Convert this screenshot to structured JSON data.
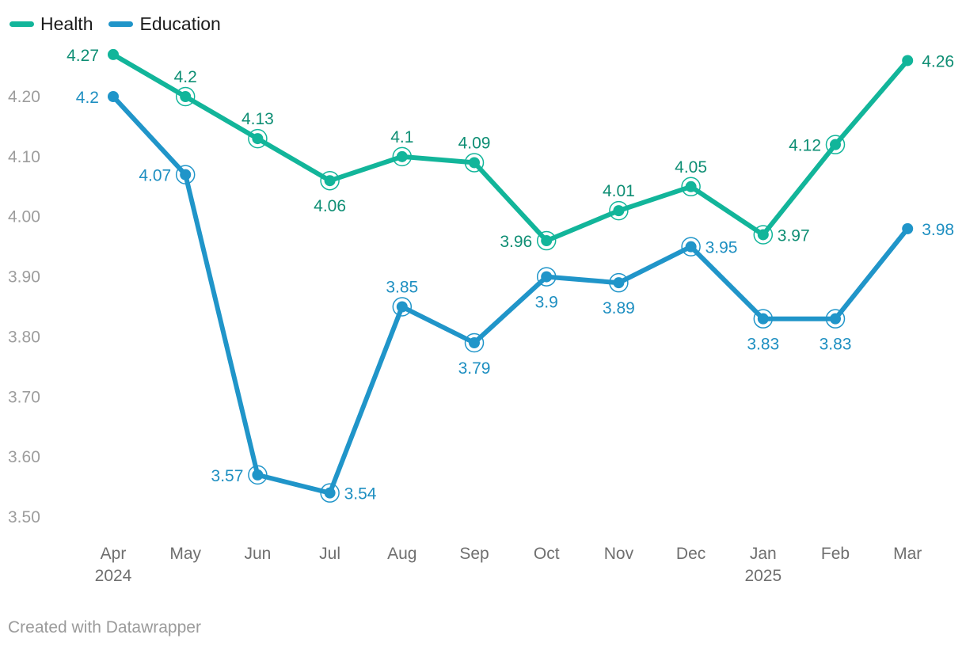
{
  "legend": [
    {
      "name": "Health",
      "color": "#12b59a"
    },
    {
      "name": "Education",
      "color": "#2095c9"
    }
  ],
  "footer": {
    "text": "Created with Datawrapper"
  },
  "chart_data": {
    "type": "line",
    "title": "",
    "xlabel": "",
    "ylabel": "",
    "x": [
      "Apr",
      "May",
      "Jun",
      "Jul",
      "Aug",
      "Sep",
      "Oct",
      "Nov",
      "Dec",
      "Jan",
      "Feb",
      "Mar"
    ],
    "x_year_labels": [
      {
        "index": 0,
        "text": "2024"
      },
      {
        "index": 9,
        "text": "2025"
      }
    ],
    "y_ticks": [
      "4.20",
      "4.10",
      "4.00",
      "3.90",
      "3.80",
      "3.70",
      "3.60",
      "3.50"
    ],
    "ylim": [
      3.5,
      4.3
    ],
    "grid": "none",
    "legend_position": "top-left",
    "series": [
      {
        "name": "Health",
        "color": "#12b59a",
        "label_color": "#0e8e74",
        "values": [
          4.27,
          4.2,
          4.13,
          4.06,
          4.1,
          4.09,
          3.96,
          4.01,
          4.05,
          3.97,
          4.12,
          4.26
        ],
        "labels": [
          "4.27",
          "4.2",
          "4.13",
          "4.06",
          "4.1",
          "4.09",
          "3.96",
          "4.01",
          "4.05",
          "3.97",
          "4.12",
          "4.26"
        ],
        "label_placement": [
          "left",
          "above",
          "above",
          "below",
          "above",
          "above",
          "left",
          "above",
          "above",
          "right",
          "left",
          "right"
        ]
      },
      {
        "name": "Education",
        "color": "#2095c9",
        "label_color": "#1e8fc1",
        "values": [
          4.2,
          4.07,
          3.57,
          3.54,
          3.85,
          3.79,
          3.9,
          3.89,
          3.95,
          3.83,
          3.83,
          3.98
        ],
        "labels": [
          "4.2",
          "4.07",
          "3.57",
          "3.54",
          "3.85",
          "3.79",
          "3.9",
          "3.89",
          "3.95",
          "3.83",
          "3.83",
          "3.98"
        ],
        "label_placement": [
          "left",
          "left",
          "left",
          "right",
          "above",
          "below",
          "below",
          "below",
          "right",
          "below",
          "below",
          "right"
        ]
      }
    ]
  }
}
